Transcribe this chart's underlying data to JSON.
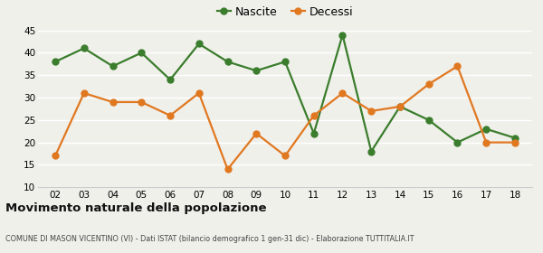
{
  "years": [
    2,
    3,
    4,
    5,
    6,
    7,
    8,
    9,
    10,
    11,
    12,
    13,
    14,
    15,
    16,
    17,
    18
  ],
  "nascite": [
    38,
    41,
    37,
    40,
    34,
    42,
    38,
    36,
    38,
    22,
    44,
    18,
    28,
    25,
    20,
    23,
    21
  ],
  "decessi": [
    17,
    31,
    29,
    29,
    26,
    31,
    14,
    22,
    17,
    26,
    31,
    27,
    28,
    33,
    37,
    20,
    20
  ],
  "nascite_color": "#3a7d2c",
  "decessi_color": "#e07820",
  "background_color": "#f0f0eb",
  "grid_color": "#ffffff",
  "ylim": [
    10,
    45
  ],
  "yticks": [
    10,
    15,
    20,
    25,
    30,
    35,
    40,
    45
  ],
  "title": "Movimento naturale della popolazione",
  "subtitle": "COMUNE DI MASON VICENTINO (VI) - Dati ISTAT (bilancio demografico 1 gen-31 dic) - Elaborazione TUTTITALIA.IT",
  "legend_nascite": "Nascite",
  "legend_decessi": "Decessi",
  "marker_size": 5,
  "linewidth": 1.6
}
